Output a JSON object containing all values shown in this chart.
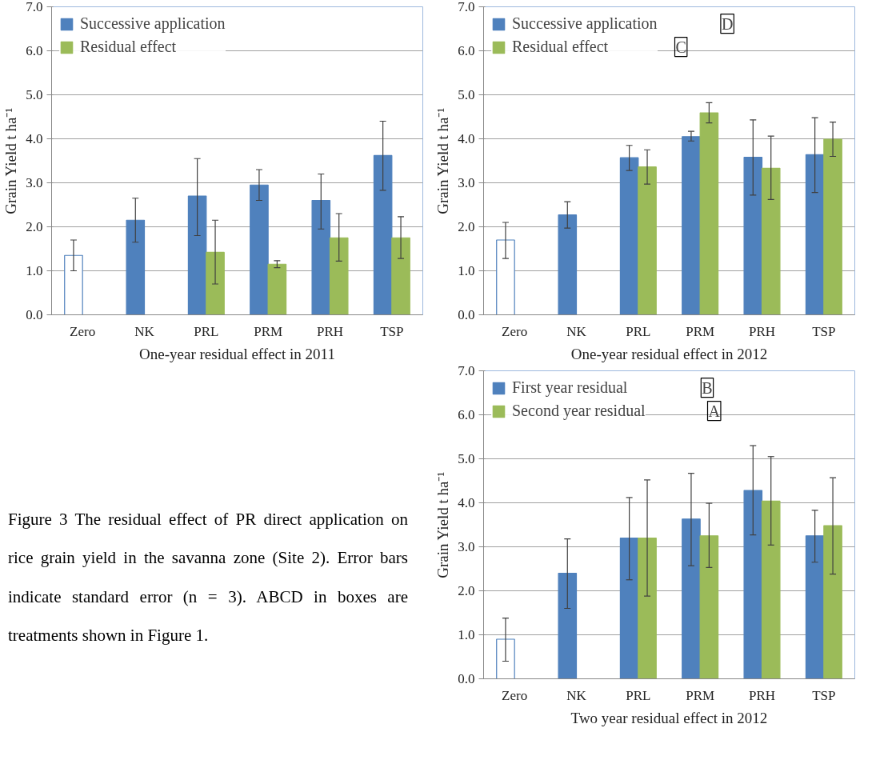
{
  "chart_data": [
    {
      "type": "bar",
      "xlabel": "One-year residual effect in 2011",
      "ylabel": "Grain Yield t ha⁻¹",
      "categories": [
        "Zero",
        "NK",
        "PRL",
        "PRM",
        "PRH",
        "TSP"
      ],
      "ylim": [
        0,
        7
      ],
      "yticks": [
        {
          "value": 0,
          "label": "0.0"
        },
        {
          "value": 1,
          "label": "1.0"
        },
        {
          "value": 2,
          "label": "2.0"
        },
        {
          "value": 3,
          "label": "3.0"
        },
        {
          "value": 4,
          "label": "4.0"
        },
        {
          "value": 5,
          "label": "5.0"
        },
        {
          "value": 6,
          "label": "6.0"
        },
        {
          "value": 7,
          "label": "7.0"
        }
      ],
      "grid": "y",
      "legend": "top left",
      "series": [
        {
          "name": "Successive application",
          "color": "#4f81bd",
          "colors": [
            "#ffffff",
            "#4f81bd",
            "#4f81bd",
            "#4f81bd",
            "#4f81bd",
            "#4f81bd"
          ],
          "values": [
            1.35,
            2.15,
            2.7,
            2.95,
            2.6,
            3.62
          ],
          "errors": [
            [
              1.0,
              1.7
            ],
            [
              1.65,
              2.65
            ],
            [
              1.8,
              3.55
            ],
            [
              2.6,
              3.3
            ],
            [
              1.95,
              3.2
            ],
            [
              2.83,
              4.4
            ]
          ]
        },
        {
          "name": "Residual effect",
          "color": "#9bbb59",
          "values": [
            null,
            null,
            1.42,
            1.15,
            1.75,
            1.75
          ],
          "errors": [
            null,
            null,
            [
              0.7,
              2.15
            ],
            [
              1.07,
              1.23
            ],
            [
              1.22,
              2.3
            ],
            [
              1.28,
              2.23
            ]
          ]
        }
      ],
      "annotations": [
        "Figure 3 The residual effect of PR direct application on rice grain yield in the savanna zone (Site 2). Error bars indicate standard error (n = 3). ABCD in boxes are treatments shown in Figure 1."
      ]
    },
    {
      "type": "bar",
      "xlabel": "One-year residual effect in 2012",
      "ylabel": "Grain Yield t ha⁻¹",
      "categories": [
        "Zero",
        "NK",
        "PRL",
        "PRM",
        "PRH",
        "TSP"
      ],
      "ylim": [
        0,
        7
      ],
      "yticks": [
        {
          "value": 0,
          "label": "0.0"
        },
        {
          "value": 1,
          "label": "1.0"
        },
        {
          "value": 2,
          "label": "2.0"
        },
        {
          "value": 3,
          "label": "3.0"
        },
        {
          "value": 4,
          "label": "4.0"
        },
        {
          "value": 5,
          "label": "5.0"
        },
        {
          "value": 6,
          "label": "6.0"
        },
        {
          "value": 7,
          "label": "7.0"
        }
      ],
      "grid": "y",
      "legend": "top left",
      "series": [
        {
          "name": "Successive application",
          "color": "#4f81bd",
          "colors": [
            "#ffffff",
            "#4f81bd",
            "#4f81bd",
            "#4f81bd",
            "#4f81bd",
            "#4f81bd"
          ],
          "values": [
            1.7,
            2.27,
            3.57,
            4.05,
            3.58,
            3.64
          ],
          "errors": [
            [
              1.28,
              2.1
            ],
            [
              1.97,
              2.57
            ],
            [
              3.28,
              3.85
            ],
            [
              3.95,
              4.17
            ],
            [
              2.72,
              4.43
            ],
            [
              2.78,
              4.48
            ]
          ]
        },
        {
          "name": "Residual effect",
          "color": "#9bbb59",
          "values": [
            null,
            null,
            3.36,
            4.59,
            3.33,
            3.99
          ],
          "errors": [
            null,
            null,
            [
              2.97,
              3.75
            ],
            [
              4.36,
              4.82
            ],
            [
              2.62,
              4.06
            ],
            [
              3.6,
              4.38
            ]
          ]
        }
      ],
      "annotations": [
        "D",
        "C"
      ]
    },
    {
      "type": "bar",
      "xlabel": "Two year residual effect in 2012",
      "ylabel": "Grain Yield t ha⁻¹",
      "categories": [
        "Zero",
        "NK",
        "PRL",
        "PRM",
        "PRH",
        "TSP"
      ],
      "ylim": [
        0,
        7
      ],
      "yticks": [
        {
          "value": 0,
          "label": "0.0"
        },
        {
          "value": 1,
          "label": "1.0"
        },
        {
          "value": 2,
          "label": "2.0"
        },
        {
          "value": 3,
          "label": "3.0"
        },
        {
          "value": 4,
          "label": "4.0"
        },
        {
          "value": 5,
          "label": "5.0"
        },
        {
          "value": 6,
          "label": "6.0"
        },
        {
          "value": 7,
          "label": "7.0"
        }
      ],
      "grid": "y",
      "legend": "top left",
      "series": [
        {
          "name": "First year residual",
          "color": "#4f81bd",
          "colors": [
            "#ffffff",
            "#4f81bd",
            "#4f81bd",
            "#4f81bd",
            "#4f81bd",
            "#4f81bd"
          ],
          "values": [
            0.9,
            2.4,
            3.2,
            3.63,
            4.28,
            3.25
          ],
          "errors": [
            [
              0.4,
              1.38
            ],
            [
              1.6,
              3.18
            ],
            [
              2.25,
              4.12
            ],
            [
              2.57,
              4.67
            ],
            [
              3.27,
              5.3
            ],
            [
              2.65,
              3.83
            ]
          ]
        },
        {
          "name": "Second year residual",
          "color": "#9bbb59",
          "values": [
            null,
            null,
            3.2,
            3.25,
            4.04,
            3.48
          ],
          "errors": [
            null,
            null,
            [
              1.88,
              4.52
            ],
            [
              2.53,
              3.99
            ],
            [
              3.04,
              5.05
            ],
            [
              2.38,
              4.57
            ]
          ]
        }
      ],
      "annotations": [
        "B",
        "A"
      ]
    }
  ]
}
